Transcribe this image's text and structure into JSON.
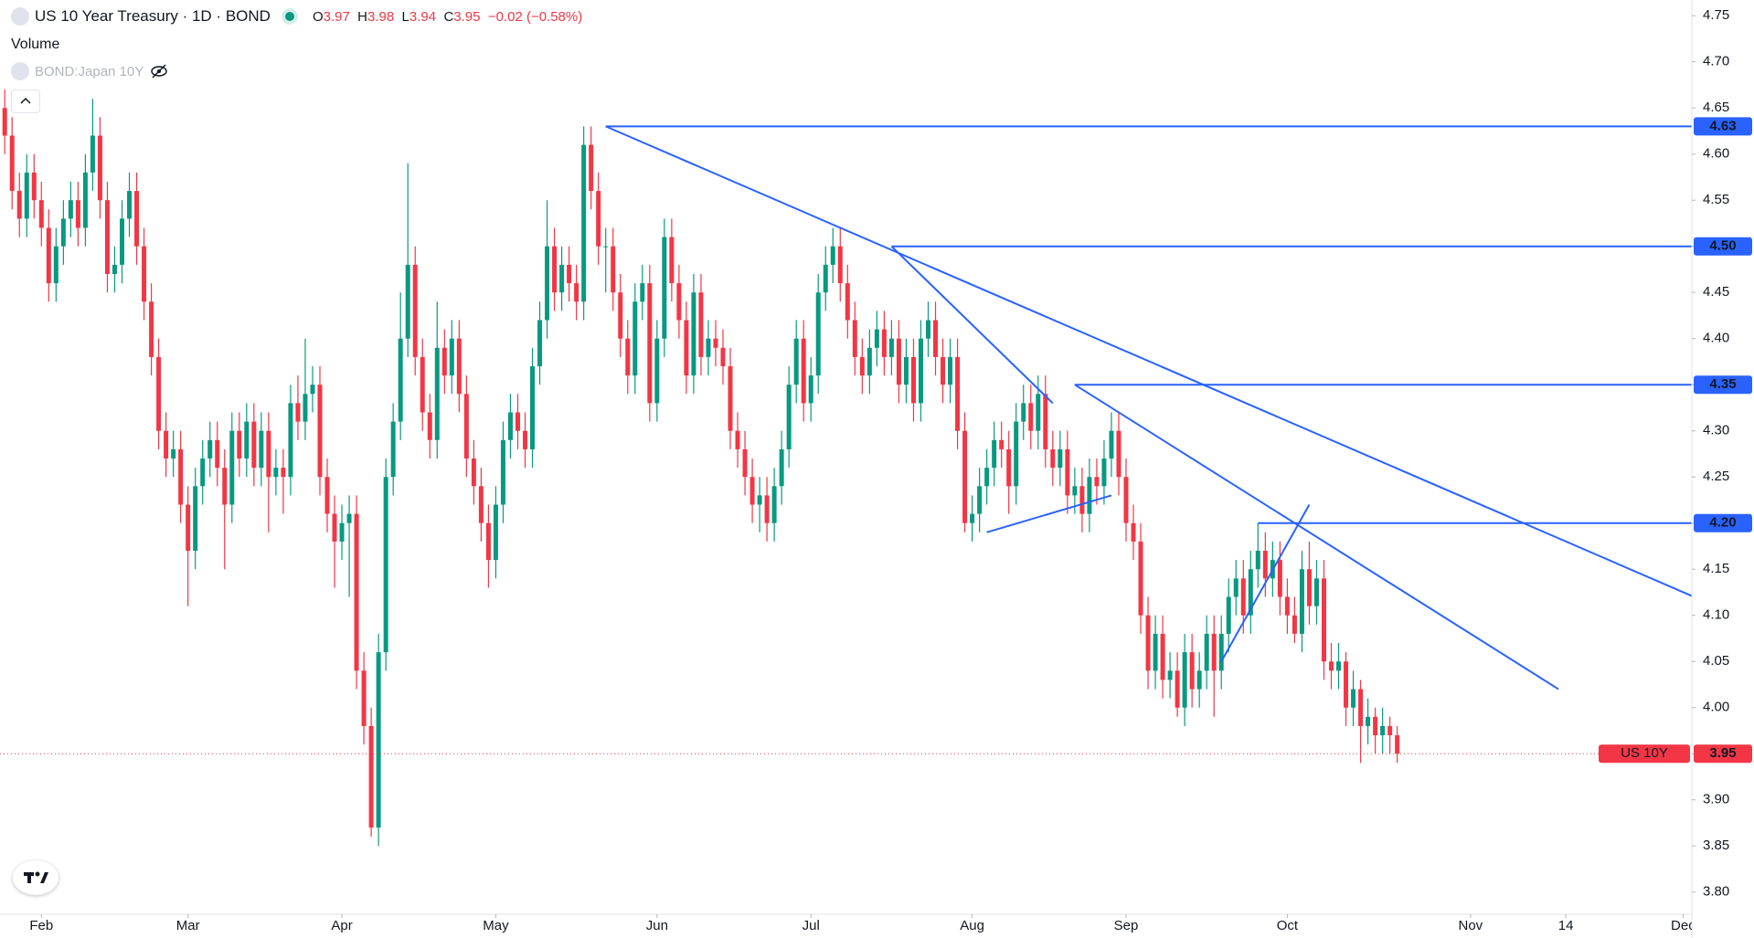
{
  "header": {
    "title": "US 10 Year Treasury · 1D · BOND",
    "o": "O",
    "h": "H",
    "l": "L",
    "c": "C",
    "change": "−0.02 (−0.58%)",
    "volume": "Volume",
    "compare": "BOND:Japan 10Y"
  },
  "chart_data": {
    "type": "candlestick",
    "up_color": "#089981",
    "down_color": "#f23645",
    "line_color": "#2962ff",
    "grid": false,
    "xlim": [
      -5.65,
      225.2
    ],
    "ylim": [
      3.776,
      4.767
    ],
    "xticks": [
      {
        "value": 0,
        "label": "Feb"
      },
      {
        "value": 20,
        "label": "Mar"
      },
      {
        "value": 41,
        "label": "Apr"
      },
      {
        "value": 62,
        "label": "May"
      },
      {
        "value": 84,
        "label": "Jun"
      },
      {
        "value": 105,
        "label": "Jul"
      },
      {
        "value": 127,
        "label": "Aug"
      },
      {
        "value": 148,
        "label": "Sep"
      },
      {
        "value": 170,
        "label": "Oct"
      },
      {
        "value": 195,
        "label": "Nov"
      },
      {
        "value": 208,
        "label": "14"
      },
      {
        "value": 224,
        "label": "Dec"
      }
    ],
    "yticks": [
      4.75,
      {
        "value": 4.7,
        "label": "4.70"
      },
      4.65,
      {
        "value": 4.6,
        "label": "4.60"
      },
      4.55,
      {
        "value": 4.5,
        "label": "4.50"
      },
      4.45,
      {
        "value": 4.4,
        "label": "4.40"
      },
      4.35,
      {
        "value": 4.3,
        "label": "4.30"
      },
      4.25,
      {
        "value": 4.2,
        "label": "4.20"
      },
      4.15,
      {
        "value": 4.1,
        "label": "4.10"
      },
      4.05,
      {
        "value": 4,
        "label": "4.00"
      },
      3.95,
      {
        "value": 3.9,
        "label": "3.90"
      },
      3.85,
      {
        "value": 3.8,
        "label": "3.80"
      }
    ],
    "price_tag": "US 10Y",
    "x": [
      -5,
      -4,
      -3,
      -2,
      -1,
      0,
      1,
      2,
      3,
      4,
      5,
      6,
      7,
      8,
      9,
      10,
      11,
      12,
      13,
      14,
      15,
      16,
      17,
      18,
      19,
      20,
      21,
      22,
      23,
      24,
      25,
      26,
      27,
      28,
      29,
      30,
      31,
      32,
      33,
      34,
      35,
      36,
      37,
      38,
      39,
      40,
      41,
      42,
      43,
      44,
      45,
      46,
      47,
      48,
      49,
      50,
      51,
      52,
      53,
      54,
      55,
      56,
      57,
      58,
      59,
      60,
      61,
      62,
      63,
      64,
      65,
      66,
      67,
      68,
      69,
      70,
      71,
      72,
      73,
      74,
      75,
      76,
      77,
      78,
      79,
      80,
      81,
      82,
      83,
      84,
      85,
      86,
      87,
      88,
      89,
      90,
      91,
      92,
      93,
      94,
      95,
      96,
      97,
      98,
      99,
      100,
      101,
      102,
      103,
      104,
      105,
      106,
      107,
      108,
      109,
      110,
      111,
      112,
      113,
      114,
      115,
      116,
      117,
      118,
      119,
      120,
      121,
      122,
      123,
      124,
      125,
      126,
      127,
      128,
      129,
      130,
      131,
      132,
      133,
      134,
      135,
      136,
      137,
      138,
      139,
      140,
      141,
      142,
      143,
      144,
      145,
      146,
      147,
      148,
      149,
      150,
      151,
      152,
      153,
      154,
      155,
      156,
      157,
      158,
      159,
      160,
      161,
      162,
      163,
      164,
      165,
      166,
      167,
      168,
      169,
      170,
      171,
      172,
      173,
      174,
      175,
      176,
      177,
      178,
      179,
      180,
      181,
      182,
      183,
      184,
      185
    ],
    "candles": [
      [
        4.65,
        4.67,
        4.6,
        4.62
      ],
      [
        4.62,
        4.64,
        4.54,
        4.56
      ],
      [
        4.56,
        4.58,
        4.51,
        4.53
      ],
      [
        4.53,
        4.6,
        4.51,
        4.58
      ],
      [
        4.58,
        4.6,
        4.53,
        4.55
      ],
      [
        4.55,
        4.57,
        4.5,
        4.52
      ],
      [
        4.52,
        4.54,
        4.44,
        4.46
      ],
      [
        4.46,
        4.52,
        4.44,
        4.5
      ],
      [
        4.5,
        4.55,
        4.48,
        4.53
      ],
      [
        4.53,
        4.57,
        4.51,
        4.55
      ],
      [
        4.55,
        4.57,
        4.5,
        4.52
      ],
      [
        4.52,
        4.6,
        4.5,
        4.58
      ],
      [
        4.58,
        4.66,
        4.56,
        4.62
      ],
      [
        4.62,
        4.64,
        4.53,
        4.55
      ],
      [
        4.55,
        4.57,
        4.45,
        4.47
      ],
      [
        4.47,
        4.5,
        4.45,
        4.48
      ],
      [
        4.48,
        4.55,
        4.46,
        4.53
      ],
      [
        4.53,
        4.58,
        4.51,
        4.56
      ],
      [
        4.56,
        4.58,
        4.48,
        4.5
      ],
      [
        4.5,
        4.52,
        4.42,
        4.44
      ],
      [
        4.44,
        4.46,
        4.36,
        4.38
      ],
      [
        4.38,
        4.4,
        4.28,
        4.3
      ],
      [
        4.3,
        4.32,
        4.25,
        4.27
      ],
      [
        4.27,
        4.3,
        4.25,
        4.28
      ],
      [
        4.28,
        4.3,
        4.2,
        4.22
      ],
      [
        4.22,
        4.24,
        4.11,
        4.17
      ],
      [
        4.17,
        4.26,
        4.15,
        4.24
      ],
      [
        4.24,
        4.29,
        4.22,
        4.27
      ],
      [
        4.27,
        4.31,
        4.25,
        4.29
      ],
      [
        4.29,
        4.31,
        4.24,
        4.26
      ],
      [
        4.26,
        4.28,
        4.15,
        4.22
      ],
      [
        4.22,
        4.32,
        4.2,
        4.3
      ],
      [
        4.3,
        4.32,
        4.25,
        4.27
      ],
      [
        4.27,
        4.33,
        4.25,
        4.31
      ],
      [
        4.31,
        4.33,
        4.24,
        4.26
      ],
      [
        4.26,
        4.32,
        4.24,
        4.3
      ],
      [
        4.3,
        4.32,
        4.19,
        4.25
      ],
      [
        4.25,
        4.28,
        4.23,
        4.26
      ],
      [
        4.26,
        4.28,
        4.21,
        4.25
      ],
      [
        4.25,
        4.35,
        4.23,
        4.33
      ],
      [
        4.33,
        4.36,
        4.29,
        4.31
      ],
      [
        4.31,
        4.4,
        4.29,
        4.34
      ],
      [
        4.34,
        4.37,
        4.32,
        4.35
      ],
      [
        4.35,
        4.37,
        4.23,
        4.25
      ],
      [
        4.25,
        4.27,
        4.19,
        4.21
      ],
      [
        4.21,
        4.23,
        4.13,
        4.18
      ],
      [
        4.18,
        4.22,
        4.16,
        4.2
      ],
      [
        4.2,
        4.23,
        4.12,
        4.21
      ],
      [
        4.21,
        4.23,
        4.02,
        4.04
      ],
      [
        4.04,
        4.06,
        3.96,
        3.98
      ],
      [
        3.98,
        4.0,
        3.86,
        3.87
      ],
      [
        3.87,
        4.08,
        3.85,
        4.06
      ],
      [
        4.06,
        4.27,
        4.04,
        4.25
      ],
      [
        4.25,
        4.33,
        4.23,
        4.31
      ],
      [
        4.31,
        4.45,
        4.29,
        4.4
      ],
      [
        4.4,
        4.59,
        4.38,
        4.48
      ],
      [
        4.48,
        4.5,
        4.36,
        4.38
      ],
      [
        4.38,
        4.4,
        4.3,
        4.32
      ],
      [
        4.32,
        4.34,
        4.27,
        4.29
      ],
      [
        4.29,
        4.44,
        4.27,
        4.39
      ],
      [
        4.39,
        4.41,
        4.34,
        4.36
      ],
      [
        4.36,
        4.42,
        4.34,
        4.4
      ],
      [
        4.4,
        4.42,
        4.32,
        4.34
      ],
      [
        4.34,
        4.36,
        4.25,
        4.27
      ],
      [
        4.27,
        4.29,
        4.22,
        4.24
      ],
      [
        4.24,
        4.26,
        4.18,
        4.2
      ],
      [
        4.2,
        4.22,
        4.13,
        4.16
      ],
      [
        4.16,
        4.24,
        4.14,
        4.22
      ],
      [
        4.22,
        4.31,
        4.2,
        4.29
      ],
      [
        4.29,
        4.34,
        4.27,
        4.32
      ],
      [
        4.32,
        4.34,
        4.28,
        4.3
      ],
      [
        4.3,
        4.32,
        4.26,
        4.28
      ],
      [
        4.28,
        4.39,
        4.26,
        4.37
      ],
      [
        4.37,
        4.44,
        4.35,
        4.42
      ],
      [
        4.42,
        4.55,
        4.4,
        4.5
      ],
      [
        4.5,
        4.52,
        4.43,
        4.45
      ],
      [
        4.45,
        4.5,
        4.43,
        4.48
      ],
      [
        4.48,
        4.5,
        4.44,
        4.46
      ],
      [
        4.46,
        4.48,
        4.42,
        4.44
      ],
      [
        4.44,
        4.63,
        4.42,
        4.61
      ],
      [
        4.61,
        4.63,
        4.54,
        4.56
      ],
      [
        4.56,
        4.58,
        4.48,
        4.5
      ],
      [
        4.5,
        4.52,
        4.45,
        4.5
      ],
      [
        4.5,
        4.52,
        4.43,
        4.45
      ],
      [
        4.45,
        4.47,
        4.38,
        4.4
      ],
      [
        4.4,
        4.42,
        4.34,
        4.36
      ],
      [
        4.36,
        4.46,
        4.34,
        4.44
      ],
      [
        4.44,
        4.48,
        4.42,
        4.46
      ],
      [
        4.46,
        4.48,
        4.31,
        4.33
      ],
      [
        4.33,
        4.42,
        4.31,
        4.4
      ],
      [
        4.4,
        4.53,
        4.38,
        4.51
      ],
      [
        4.51,
        4.53,
        4.44,
        4.46
      ],
      [
        4.46,
        4.48,
        4.4,
        4.42
      ],
      [
        4.42,
        4.44,
        4.34,
        4.36
      ],
      [
        4.36,
        4.47,
        4.34,
        4.45
      ],
      [
        4.45,
        4.47,
        4.36,
        4.38
      ],
      [
        4.38,
        4.42,
        4.36,
        4.4
      ],
      [
        4.4,
        4.42,
        4.37,
        4.39
      ],
      [
        4.39,
        4.41,
        4.35,
        4.37
      ],
      [
        4.37,
        4.39,
        4.28,
        4.3
      ],
      [
        4.3,
        4.32,
        4.26,
        4.28
      ],
      [
        4.28,
        4.3,
        4.23,
        4.25
      ],
      [
        4.25,
        4.27,
        4.2,
        4.22
      ],
      [
        4.22,
        4.25,
        4.19,
        4.23
      ],
      [
        4.23,
        4.25,
        4.18,
        4.2
      ],
      [
        4.2,
        4.26,
        4.18,
        4.24
      ],
      [
        4.24,
        4.3,
        4.22,
        4.28
      ],
      [
        4.28,
        4.37,
        4.26,
        4.35
      ],
      [
        4.35,
        4.42,
        4.33,
        4.4
      ],
      [
        4.4,
        4.42,
        4.31,
        4.33
      ],
      [
        4.33,
        4.38,
        4.31,
        4.36
      ],
      [
        4.36,
        4.47,
        4.34,
        4.45
      ],
      [
        4.45,
        4.5,
        4.43,
        4.48
      ],
      [
        4.48,
        4.52,
        4.46,
        4.5
      ],
      [
        4.5,
        4.52,
        4.44,
        4.46
      ],
      [
        4.46,
        4.48,
        4.4,
        4.42
      ],
      [
        4.42,
        4.44,
        4.36,
        4.38
      ],
      [
        4.38,
        4.4,
        4.34,
        4.36
      ],
      [
        4.36,
        4.41,
        4.34,
        4.39
      ],
      [
        4.39,
        4.43,
        4.37,
        4.41
      ],
      [
        4.41,
        4.43,
        4.36,
        4.38
      ],
      [
        4.38,
        4.42,
        4.36,
        4.4
      ],
      [
        4.4,
        4.42,
        4.33,
        4.35
      ],
      [
        4.35,
        4.4,
        4.33,
        4.38
      ],
      [
        4.38,
        4.4,
        4.31,
        4.33
      ],
      [
        4.33,
        4.42,
        4.31,
        4.4
      ],
      [
        4.4,
        4.44,
        4.38,
        4.42
      ],
      [
        4.42,
        4.44,
        4.36,
        4.38
      ],
      [
        4.38,
        4.4,
        4.33,
        4.35
      ],
      [
        4.35,
        4.4,
        4.33,
        4.38
      ],
      [
        4.38,
        4.4,
        4.28,
        4.3
      ],
      [
        4.3,
        4.32,
        4.19,
        4.2
      ],
      [
        4.2,
        4.23,
        4.18,
        4.21
      ],
      [
        4.21,
        4.26,
        4.19,
        4.24
      ],
      [
        4.24,
        4.28,
        4.22,
        4.26
      ],
      [
        4.26,
        4.31,
        4.24,
        4.29
      ],
      [
        4.29,
        4.31,
        4.26,
        4.28
      ],
      [
        4.28,
        4.3,
        4.21,
        4.24
      ],
      [
        4.24,
        4.33,
        4.22,
        4.31
      ],
      [
        4.31,
        4.35,
        4.29,
        4.33
      ],
      [
        4.33,
        4.35,
        4.28,
        4.3
      ],
      [
        4.3,
        4.36,
        4.28,
        4.34
      ],
      [
        4.34,
        4.36,
        4.26,
        4.28
      ],
      [
        4.28,
        4.3,
        4.24,
        4.26
      ],
      [
        4.26,
        4.3,
        4.24,
        4.28
      ],
      [
        4.28,
        4.3,
        4.21,
        4.23
      ],
      [
        4.23,
        4.26,
        4.21,
        4.24
      ],
      [
        4.24,
        4.26,
        4.19,
        4.21
      ],
      [
        4.21,
        4.27,
        4.19,
        4.25
      ],
      [
        4.25,
        4.27,
        4.22,
        4.24
      ],
      [
        4.24,
        4.29,
        4.22,
        4.27
      ],
      [
        4.27,
        4.32,
        4.25,
        4.3
      ],
      [
        4.3,
        4.32,
        4.23,
        4.25
      ],
      [
        4.25,
        4.27,
        4.18,
        4.2
      ],
      [
        4.2,
        4.22,
        4.16,
        4.18
      ],
      [
        4.18,
        4.2,
        4.08,
        4.1
      ],
      [
        4.1,
        4.12,
        4.02,
        4.04
      ],
      [
        4.04,
        4.1,
        4.02,
        4.08
      ],
      [
        4.08,
        4.1,
        4.01,
        4.03
      ],
      [
        4.03,
        4.06,
        4.01,
        4.04
      ],
      [
        4.04,
        4.06,
        3.99,
        4.0
      ],
      [
        4.0,
        4.08,
        3.98,
        4.06
      ],
      [
        4.06,
        4.08,
        4.0,
        4.02
      ],
      [
        4.02,
        4.06,
        4.0,
        4.04
      ],
      [
        4.04,
        4.1,
        4.02,
        4.08
      ],
      [
        4.08,
        4.1,
        3.99,
        4.04
      ],
      [
        4.04,
        4.1,
        4.02,
        4.08
      ],
      [
        4.08,
        4.14,
        4.06,
        4.12
      ],
      [
        4.12,
        4.16,
        4.1,
        4.14
      ],
      [
        4.14,
        4.16,
        4.08,
        4.1
      ],
      [
        4.1,
        4.17,
        4.08,
        4.15
      ],
      [
        4.15,
        4.2,
        4.13,
        4.17
      ],
      [
        4.17,
        4.19,
        4.12,
        4.14
      ],
      [
        4.14,
        4.18,
        4.12,
        4.16
      ],
      [
        4.16,
        4.18,
        4.1,
        4.12
      ],
      [
        4.12,
        4.14,
        4.08,
        4.1
      ],
      [
        4.1,
        4.12,
        4.07,
        4.08
      ],
      [
        4.08,
        4.17,
        4.06,
        4.15
      ],
      [
        4.15,
        4.18,
        4.09,
        4.11
      ],
      [
        4.11,
        4.16,
        4.09,
        4.14
      ],
      [
        4.14,
        4.16,
        4.03,
        4.05
      ],
      [
        4.05,
        4.07,
        4.02,
        4.04
      ],
      [
        4.04,
        4.07,
        4.02,
        4.05
      ],
      [
        4.05,
        4.06,
        3.98,
        4.0
      ],
      [
        4.0,
        4.04,
        3.98,
        4.02
      ],
      [
        4.02,
        4.03,
        3.94,
        3.98
      ],
      [
        3.98,
        4.01,
        3.96,
        3.99
      ],
      [
        3.99,
        4.0,
        3.95,
        3.97
      ],
      [
        3.97,
        4.0,
        3.95,
        3.98
      ],
      [
        3.98,
        3.99,
        3.95,
        3.97
      ],
      [
        3.97,
        3.98,
        3.94,
        3.95
      ]
    ],
    "hlines": [
      {
        "value": 4.63,
        "label": "4.63",
        "x0": 77
      },
      {
        "value": 4.5,
        "label": "4.50",
        "x0": 116
      },
      {
        "value": 4.35,
        "label": "4.35",
        "x0": 141
      },
      {
        "value": 4.2,
        "label": "4.20",
        "x0": 166
      }
    ],
    "trendlines": [
      {
        "x": [
          77,
          225.5
        ],
        "y": [
          4.63,
          4.12
        ]
      },
      {
        "x": [
          116,
          138
        ],
        "y": [
          4.5,
          4.33
        ]
      },
      {
        "x": [
          141,
          207
        ],
        "y": [
          4.35,
          4.02
        ]
      },
      {
        "x": [
          129,
          146
        ],
        "y": [
          4.19,
          4.23
        ]
      },
      {
        "x": [
          161,
          173
        ],
        "y": [
          4.05,
          4.22
        ]
      }
    ]
  }
}
